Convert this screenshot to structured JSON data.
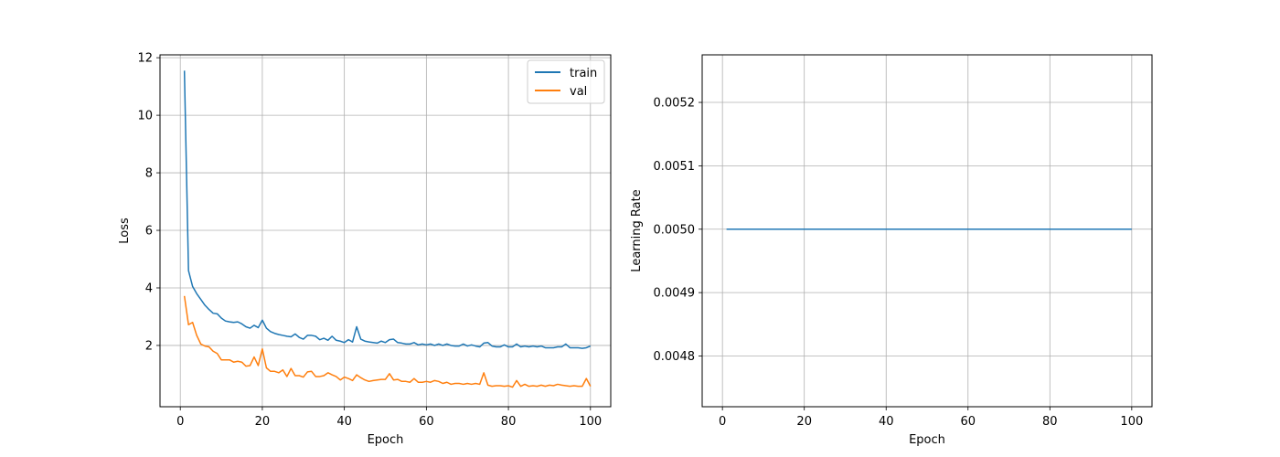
{
  "chart_data": [
    {
      "type": "line",
      "xlabel": "Epoch",
      "ylabel": "Loss",
      "xlim": [
        -4.95,
        104.95
      ],
      "ylim": [
        -0.13,
        12.1
      ],
      "xticks": [
        0,
        20,
        40,
        60,
        80,
        100
      ],
      "yticks": [
        2,
        4,
        6,
        8,
        10,
        12
      ],
      "grid": true,
      "legend": "top-right",
      "series": [
        {
          "name": "train",
          "color": "#1f77b4",
          "x": [
            1,
            2,
            3,
            4,
            5,
            6,
            7,
            8,
            9,
            10,
            11,
            12,
            13,
            14,
            15,
            16,
            17,
            18,
            19,
            20,
            21,
            22,
            23,
            24,
            25,
            26,
            27,
            28,
            29,
            30,
            31,
            32,
            33,
            34,
            35,
            36,
            37,
            38,
            39,
            40,
            41,
            42,
            43,
            44,
            45,
            46,
            47,
            48,
            49,
            50,
            51,
            52,
            53,
            54,
            55,
            56,
            57,
            58,
            59,
            60,
            61,
            62,
            63,
            64,
            65,
            66,
            67,
            68,
            69,
            70,
            71,
            72,
            73,
            74,
            75,
            76,
            77,
            78,
            79,
            80,
            81,
            82,
            83,
            84,
            85,
            86,
            87,
            88,
            89,
            90,
            91,
            92,
            93,
            94,
            95,
            96,
            97,
            98,
            99,
            100
          ],
          "values": [
            11.55,
            4.6,
            4.05,
            3.8,
            3.6,
            3.4,
            3.25,
            3.12,
            3.1,
            2.95,
            2.85,
            2.82,
            2.8,
            2.82,
            2.75,
            2.65,
            2.6,
            2.7,
            2.62,
            2.88,
            2.6,
            2.48,
            2.42,
            2.38,
            2.35,
            2.32,
            2.3,
            2.4,
            2.28,
            2.22,
            2.35,
            2.35,
            2.32,
            2.2,
            2.25,
            2.18,
            2.32,
            2.18,
            2.15,
            2.1,
            2.2,
            2.12,
            2.65,
            2.22,
            2.15,
            2.12,
            2.1,
            2.08,
            2.15,
            2.1,
            2.2,
            2.22,
            2.1,
            2.08,
            2.05,
            2.05,
            2.1,
            2.02,
            2.05,
            2.02,
            2.05,
            2.0,
            2.05,
            2.0,
            2.05,
            2.0,
            1.98,
            1.98,
            2.05,
            1.98,
            2.02,
            1.98,
            1.95,
            2.08,
            2.1,
            1.98,
            1.95,
            1.95,
            2.02,
            1.95,
            1.95,
            2.05,
            1.95,
            1.98,
            1.95,
            1.98,
            1.95,
            1.98,
            1.92,
            1.92,
            1.92,
            1.95,
            1.95,
            2.05,
            1.92,
            1.92,
            1.92,
            1.9,
            1.92,
            1.98
          ]
        },
        {
          "name": "val",
          "color": "#ff7f0e",
          "x": [
            1,
            2,
            3,
            4,
            5,
            6,
            7,
            8,
            9,
            10,
            11,
            12,
            13,
            14,
            15,
            16,
            17,
            18,
            19,
            20,
            21,
            22,
            23,
            24,
            25,
            26,
            27,
            28,
            29,
            30,
            31,
            32,
            33,
            34,
            35,
            36,
            37,
            38,
            39,
            40,
            41,
            42,
            43,
            44,
            45,
            46,
            47,
            48,
            49,
            50,
            51,
            52,
            53,
            54,
            55,
            56,
            57,
            58,
            59,
            60,
            61,
            62,
            63,
            64,
            65,
            66,
            67,
            68,
            69,
            70,
            71,
            72,
            73,
            74,
            75,
            76,
            77,
            78,
            79,
            80,
            81,
            82,
            83,
            84,
            85,
            86,
            87,
            88,
            89,
            90,
            91,
            92,
            93,
            94,
            95,
            96,
            97,
            98,
            99,
            100
          ],
          "values": [
            3.72,
            2.72,
            2.8,
            2.35,
            2.05,
            1.98,
            1.95,
            1.8,
            1.72,
            1.5,
            1.5,
            1.5,
            1.42,
            1.45,
            1.42,
            1.28,
            1.3,
            1.6,
            1.3,
            1.88,
            1.22,
            1.1,
            1.1,
            1.05,
            1.15,
            0.92,
            1.2,
            0.95,
            0.95,
            0.9,
            1.08,
            1.1,
            0.92,
            0.92,
            0.95,
            1.05,
            0.98,
            0.92,
            0.8,
            0.9,
            0.85,
            0.78,
            0.98,
            0.88,
            0.8,
            0.75,
            0.78,
            0.8,
            0.82,
            0.82,
            1.02,
            0.8,
            0.82,
            0.75,
            0.75,
            0.72,
            0.85,
            0.72,
            0.72,
            0.75,
            0.72,
            0.78,
            0.75,
            0.68,
            0.72,
            0.65,
            0.68,
            0.68,
            0.65,
            0.68,
            0.65,
            0.68,
            0.65,
            1.05,
            0.62,
            0.58,
            0.6,
            0.6,
            0.58,
            0.6,
            0.55,
            0.78,
            0.58,
            0.65,
            0.58,
            0.6,
            0.58,
            0.62,
            0.58,
            0.62,
            0.6,
            0.65,
            0.62,
            0.6,
            0.58,
            0.6,
            0.58,
            0.58,
            0.85,
            0.58
          ]
        }
      ]
    },
    {
      "type": "line",
      "xlabel": "Epoch",
      "ylabel": "Learning Rate",
      "xlim": [
        -4.95,
        104.95
      ],
      "ylim": [
        0.00472,
        0.005275
      ],
      "xticks": [
        0,
        20,
        40,
        60,
        80,
        100
      ],
      "yticks": [
        "0.0048",
        "0.0049",
        "0.0050",
        "0.0051",
        "0.0052"
      ],
      "grid": true,
      "series": [
        {
          "color": "#1f77b4",
          "x": [
            1,
            100
          ],
          "values": [
            0.005,
            0.005
          ]
        }
      ]
    }
  ]
}
